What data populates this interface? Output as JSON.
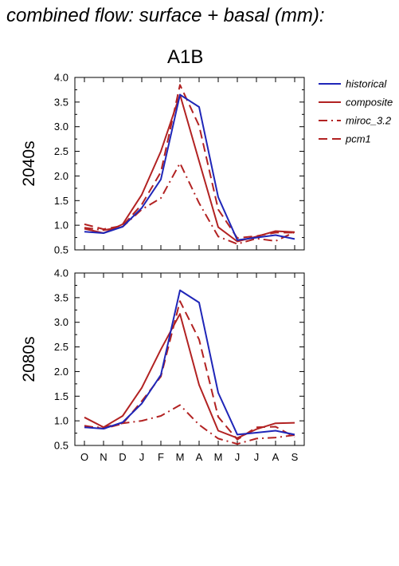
{
  "figure": {
    "title": "combined flow: surface + basal (mm):",
    "scenario": "A1B"
  },
  "colors": {
    "historical": "#1f26b8",
    "model": "#b22222"
  },
  "chart_data": [
    {
      "type": "line",
      "panel_label": "2040s",
      "categories": [
        "O",
        "N",
        "D",
        "J",
        "F",
        "M",
        "A",
        "M",
        "J",
        "J",
        "A",
        "S"
      ],
      "ylim": [
        0.5,
        4.0
      ],
      "yticks": [
        "0.5",
        "1.0",
        "1.5",
        "2.0",
        "2.5",
        "3.0",
        "3.5",
        "4.0"
      ],
      "series": [
        {
          "name": "historical",
          "style": "solid",
          "color": "#1f26b8",
          "values": [
            0.87,
            0.84,
            0.97,
            1.35,
            1.93,
            3.65,
            3.4,
            1.57,
            0.7,
            0.75,
            0.8,
            0.72
          ]
        },
        {
          "name": "composite",
          "style": "solid",
          "color": "#b22222",
          "values": [
            0.93,
            0.84,
            1.02,
            1.62,
            2.5,
            3.65,
            2.3,
            0.96,
            0.67,
            0.77,
            0.88,
            0.86
          ]
        },
        {
          "name": "miroc_3.2",
          "style": "dashdot",
          "color": "#b22222",
          "values": [
            0.95,
            0.9,
            0.97,
            1.32,
            1.55,
            2.26,
            1.45,
            0.77,
            0.62,
            0.73,
            0.68,
            0.86
          ]
        },
        {
          "name": "pcm1",
          "style": "dashed",
          "color": "#b22222",
          "values": [
            1.02,
            0.92,
            0.99,
            1.42,
            2.08,
            3.85,
            3.02,
            1.32,
            0.74,
            0.78,
            0.85,
            0.85
          ]
        }
      ]
    },
    {
      "type": "line",
      "panel_label": "2080s",
      "categories": [
        "O",
        "N",
        "D",
        "J",
        "F",
        "M",
        "A",
        "M",
        "J",
        "J",
        "A",
        "S"
      ],
      "ylim": [
        0.5,
        4.0
      ],
      "yticks": [
        "0.5",
        "1.0",
        "1.5",
        "2.0",
        "2.5",
        "3.0",
        "3.5",
        "4.0"
      ],
      "series": [
        {
          "name": "historical",
          "style": "solid",
          "color": "#1f26b8",
          "values": [
            0.87,
            0.84,
            0.97,
            1.35,
            1.93,
            3.65,
            3.4,
            1.57,
            0.72,
            0.76,
            0.8,
            0.72
          ]
        },
        {
          "name": "composite",
          "style": "solid",
          "color": "#b22222",
          "values": [
            1.07,
            0.87,
            1.1,
            1.67,
            2.45,
            3.17,
            1.73,
            0.8,
            0.65,
            0.83,
            0.95,
            0.96
          ]
        },
        {
          "name": "miroc_3.2",
          "style": "dashdot",
          "color": "#b22222",
          "values": [
            0.87,
            0.87,
            0.95,
            1.0,
            1.1,
            1.32,
            0.92,
            0.64,
            0.53,
            0.64,
            0.66,
            0.71
          ]
        },
        {
          "name": "pcm1",
          "style": "dashed",
          "color": "#b22222",
          "values": [
            0.9,
            0.84,
            0.94,
            1.4,
            1.9,
            3.43,
            2.65,
            1.08,
            0.62,
            0.87,
            0.88,
            0.67
          ]
        }
      ]
    }
  ],
  "legend": {
    "placement": "right",
    "entries": [
      "historical",
      "composite",
      "miroc_3.2",
      "pcm1"
    ]
  }
}
